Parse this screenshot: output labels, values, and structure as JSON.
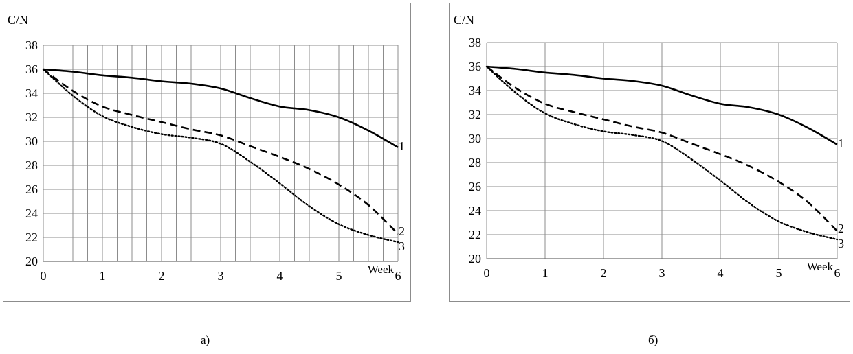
{
  "chart_data": [
    {
      "type": "line",
      "panel_caption": "а)",
      "ylabel": "C/N",
      "xlabel": "Week",
      "xlim": [
        0,
        6
      ],
      "ylim": [
        20,
        38
      ],
      "x_ticks": [
        0,
        1,
        2,
        3,
        4,
        5,
        6
      ],
      "y_ticks": [
        20,
        22,
        24,
        26,
        28,
        30,
        32,
        34,
        36,
        38
      ],
      "grid": "dense",
      "series": [
        {
          "label": "1",
          "style": "solid",
          "x": [
            0,
            0.5,
            1,
            1.5,
            2,
            2.5,
            3,
            3.5,
            4,
            4.5,
            5,
            5.5,
            6
          ],
          "y": [
            36,
            35.8,
            35.5,
            35.3,
            35.0,
            34.8,
            34.4,
            33.6,
            32.9,
            32.6,
            32.0,
            30.9,
            29.5
          ]
        },
        {
          "label": "2",
          "style": "dashed",
          "x": [
            0,
            0.5,
            1,
            1.5,
            2,
            2.5,
            3,
            3.5,
            4,
            4.5,
            5,
            5.5,
            6
          ],
          "y": [
            36,
            34.2,
            32.9,
            32.2,
            31.6,
            31.0,
            30.5,
            29.6,
            28.7,
            27.7,
            26.4,
            24.7,
            22.3
          ]
        },
        {
          "label": "3",
          "style": "dotted",
          "x": [
            0,
            0.5,
            1,
            1.5,
            2,
            2.5,
            3,
            3.5,
            4,
            4.5,
            5,
            5.5,
            6
          ],
          "y": [
            36,
            33.8,
            32.1,
            31.2,
            30.6,
            30.3,
            29.8,
            28.3,
            26.5,
            24.6,
            23.1,
            22.2,
            21.6
          ]
        }
      ]
    },
    {
      "type": "line",
      "panel_caption": "б)",
      "ylabel": "C/N",
      "xlabel": "Week",
      "xlim": [
        0,
        6
      ],
      "ylim": [
        20,
        38
      ],
      "x_ticks": [
        0,
        1,
        2,
        3,
        4,
        5,
        6
      ],
      "y_ticks": [
        20,
        22,
        24,
        26,
        28,
        30,
        32,
        34,
        36,
        38
      ],
      "grid": "major",
      "series": [
        {
          "label": "1",
          "style": "solid",
          "x": [
            0,
            0.5,
            1,
            1.5,
            2,
            2.5,
            3,
            3.5,
            4,
            4.5,
            5,
            5.5,
            6
          ],
          "y": [
            36,
            35.8,
            35.5,
            35.3,
            35.0,
            34.8,
            34.4,
            33.6,
            32.9,
            32.6,
            32.0,
            30.9,
            29.5
          ]
        },
        {
          "label": "2",
          "style": "dashed",
          "x": [
            0,
            0.5,
            1,
            1.5,
            2,
            2.5,
            3,
            3.5,
            4,
            4.5,
            5,
            5.5,
            6
          ],
          "y": [
            36,
            34.2,
            32.9,
            32.2,
            31.6,
            31.0,
            30.5,
            29.6,
            28.7,
            27.7,
            26.4,
            24.7,
            22.3
          ]
        },
        {
          "label": "3",
          "style": "dotted",
          "x": [
            0,
            0.5,
            1,
            1.5,
            2,
            2.5,
            3,
            3.5,
            4,
            4.5,
            5,
            5.5,
            6
          ],
          "y": [
            36,
            33.8,
            32.1,
            31.2,
            30.6,
            30.3,
            29.8,
            28.3,
            26.5,
            24.6,
            23.1,
            22.2,
            21.6
          ]
        }
      ]
    }
  ]
}
